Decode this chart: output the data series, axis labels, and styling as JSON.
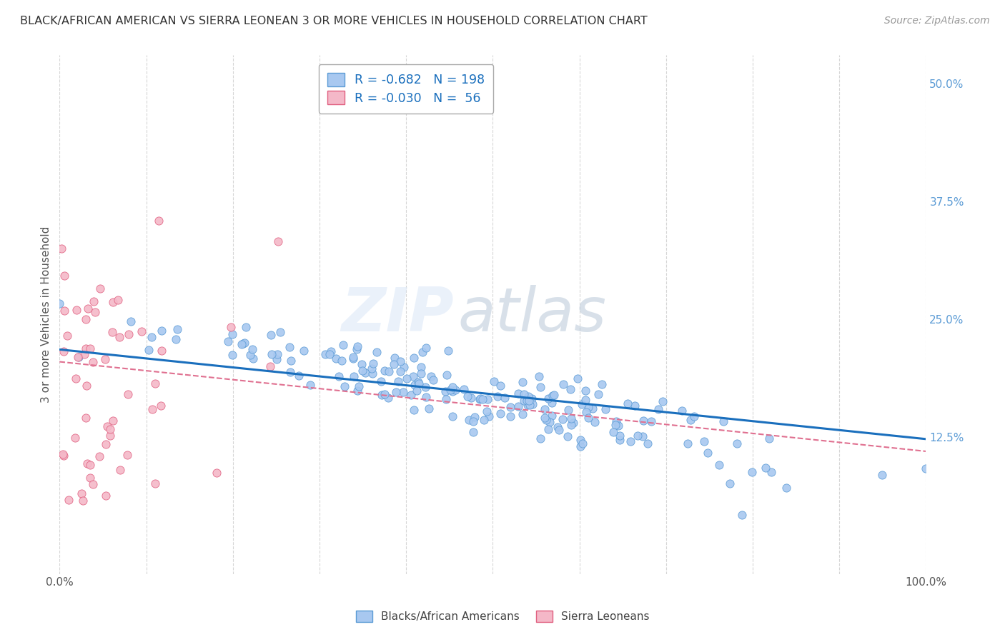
{
  "title": "BLACK/AFRICAN AMERICAN VS SIERRA LEONEAN 3 OR MORE VEHICLES IN HOUSEHOLD CORRELATION CHART",
  "source": "Source: ZipAtlas.com",
  "ylabel": "3 or more Vehicles in Household",
  "watermark_zip": "ZIP",
  "watermark_atlas": "atlas",
  "blue_R": "-0.682",
  "blue_N": 198,
  "pink_R": "-0.030",
  "pink_N": 56,
  "blue_color": "#a8c8f0",
  "blue_edge": "#5b9bd5",
  "pink_color": "#f4b8c8",
  "pink_edge": "#e06080",
  "blue_line_color": "#1a6fbd",
  "pink_line_color": "#e07090",
  "legend_label_blue": "Blacks/African Americans",
  "legend_label_pink": "Sierra Leoneans",
  "xlim": [
    0.0,
    1.0
  ],
  "ylim": [
    -0.02,
    0.53
  ],
  "yticks_right": [
    0.125,
    0.25,
    0.375,
    0.5
  ],
  "yticklabels_right": [
    "12.5%",
    "25.0%",
    "37.5%",
    "50.0%"
  ],
  "background_color": "#ffffff",
  "grid_color": "#cccccc",
  "title_color": "#333333",
  "right_tick_color": "#5b9bd5",
  "legend_text_color": "#1a6fbd"
}
